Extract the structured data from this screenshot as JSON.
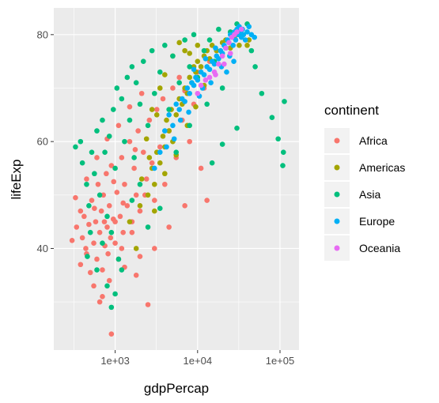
{
  "chart_data": {
    "type": "scatter",
    "title": "",
    "xlabel": "gdpPercap",
    "ylabel": "lifeExp",
    "x_scale": "log10",
    "xlim": [
      180,
      170000
    ],
    "ylim": [
      21,
      85
    ],
    "x_ticks": [
      1000,
      10000,
      100000
    ],
    "x_tick_labels": [
      "1e+03",
      "1e+04",
      "1e+05"
    ],
    "y_ticks": [
      40,
      60,
      80
    ],
    "y_tick_labels": [
      "40",
      "60",
      "80"
    ],
    "grid": true,
    "legend": {
      "title": "continent",
      "position": "right"
    },
    "series": [
      {
        "name": "Africa",
        "color": "#F8766D",
        "points": [
          [
            300,
            41.5
          ],
          [
            340,
            44
          ],
          [
            380,
            37
          ],
          [
            400,
            42
          ],
          [
            420,
            46
          ],
          [
            450,
            39
          ],
          [
            480,
            44.5
          ],
          [
            500,
            35.5
          ],
          [
            520,
            49
          ],
          [
            550,
            41
          ],
          [
            580,
            45
          ],
          [
            600,
            38
          ],
          [
            620,
            52
          ],
          [
            650,
            43
          ],
          [
            680,
            47
          ],
          [
            700,
            36
          ],
          [
            720,
            50
          ],
          [
            750,
            40.5
          ],
          [
            780,
            54
          ],
          [
            800,
            44
          ],
          [
            820,
            39
          ],
          [
            850,
            48
          ],
          [
            880,
            42
          ],
          [
            900,
            55.5
          ],
          [
            950,
            45.5
          ],
          [
            1000,
            41
          ],
          [
            1050,
            50.5
          ],
          [
            1100,
            38
          ],
          [
            1150,
            46
          ],
          [
            1200,
            57
          ],
          [
            1250,
            43
          ],
          [
            1300,
            52
          ],
          [
            1400,
            48
          ],
          [
            1500,
            60
          ],
          [
            1600,
            45
          ],
          [
            1700,
            55
          ],
          [
            1800,
            50
          ],
          [
            1900,
            62
          ],
          [
            2000,
            47
          ],
          [
            2200,
            58
          ],
          [
            2400,
            53
          ],
          [
            2600,
            64
          ],
          [
            2800,
            56
          ],
          [
            3000,
            49
          ],
          [
            3200,
            66
          ],
          [
            3500,
            59
          ],
          [
            3800,
            68
          ],
          [
            4000,
            52
          ],
          [
            4500,
            62
          ],
          [
            5000,
            70
          ],
          [
            5500,
            57
          ],
          [
            6000,
            72
          ],
          [
            6500,
            64
          ],
          [
            7000,
            69.5
          ],
          [
            8000,
            60
          ],
          [
            9000,
            67
          ],
          [
            10000,
            73
          ],
          [
            11000,
            55
          ],
          [
            12000,
            70
          ],
          [
            13000,
            49
          ],
          [
            14000,
            75
          ],
          [
            900,
            24
          ],
          [
            700,
            31
          ],
          [
            2500,
            29.5
          ],
          [
            1800,
            35
          ],
          [
            550,
            33
          ],
          [
            1300,
            36.5
          ],
          [
            3000,
            40
          ],
          [
            4500,
            44
          ],
          [
            7000,
            48
          ],
          [
            380,
            47
          ],
          [
            450,
            53
          ],
          [
            600,
            57
          ],
          [
            800,
            60.5
          ],
          [
            1100,
            63
          ],
          [
            1500,
            66.5
          ],
          [
            2100,
            69
          ],
          [
            650,
            30
          ],
          [
            850,
            34
          ],
          [
            1000,
            45
          ],
          [
            1200,
            40
          ],
          [
            1600,
            43
          ],
          [
            2000,
            38.5
          ],
          [
            330,
            49.5
          ],
          [
            440,
            40
          ],
          [
            560,
            47.5
          ],
          [
            740,
            45
          ],
          [
            960,
            52.5
          ],
          [
            1250,
            48.5
          ],
          [
            1750,
            58.5
          ],
          [
            2300,
            50
          ]
        ]
      },
      {
        "name": "Americas",
        "color": "#A3A500",
        "points": [
          [
            1500,
            45
          ],
          [
            1800,
            40
          ],
          [
            2000,
            48
          ],
          [
            2500,
            50
          ],
          [
            2800,
            55
          ],
          [
            3000,
            52
          ],
          [
            3200,
            58
          ],
          [
            3500,
            56
          ],
          [
            3800,
            61
          ],
          [
            4000,
            59
          ],
          [
            4200,
            64
          ],
          [
            4500,
            62
          ],
          [
            4800,
            66
          ],
          [
            5000,
            60
          ],
          [
            5500,
            65
          ],
          [
            6000,
            68
          ],
          [
            6500,
            67
          ],
          [
            7000,
            70
          ],
          [
            7500,
            69
          ],
          [
            8000,
            72
          ],
          [
            8500,
            71
          ],
          [
            9000,
            74
          ],
          [
            9500,
            73
          ],
          [
            10000,
            75
          ],
          [
            11000,
            74
          ],
          [
            12000,
            76
          ],
          [
            13000,
            77
          ],
          [
            14000,
            75.5
          ],
          [
            15000,
            78
          ],
          [
            17000,
            77
          ],
          [
            20000,
            78.5
          ],
          [
            22000,
            79
          ],
          [
            25000,
            77.5
          ],
          [
            28000,
            79.5
          ],
          [
            32000,
            78
          ],
          [
            36000,
            80
          ],
          [
            40000,
            78
          ],
          [
            42000,
            79
          ],
          [
            6000,
            78.5
          ],
          [
            7000,
            77
          ],
          [
            5000,
            76
          ],
          [
            4000,
            72.5
          ],
          [
            3500,
            70
          ],
          [
            2800,
            66
          ],
          [
            2400,
            60.5
          ],
          [
            2100,
            53
          ],
          [
            3000,
            47
          ],
          [
            4000,
            54
          ],
          [
            5500,
            57.5
          ],
          [
            7500,
            63
          ],
          [
            9500,
            66.5
          ],
          [
            12000,
            70.5
          ],
          [
            8000,
            76.5
          ],
          [
            10000,
            78
          ],
          [
            3200,
            65
          ],
          [
            2600,
            57
          ]
        ]
      },
      {
        "name": "Asia",
        "color": "#00BF7D",
        "points": [
          [
            330,
            59
          ],
          [
            380,
            60
          ],
          [
            400,
            56
          ],
          [
            450,
            52
          ],
          [
            480,
            48
          ],
          [
            520,
            58
          ],
          [
            560,
            54
          ],
          [
            600,
            62
          ],
          [
            650,
            50
          ],
          [
            700,
            64
          ],
          [
            750,
            58
          ],
          [
            800,
            46
          ],
          [
            850,
            61
          ],
          [
            900,
            43
          ],
          [
            950,
            66
          ],
          [
            1000,
            55
          ],
          [
            1050,
            70
          ],
          [
            1100,
            38
          ],
          [
            1200,
            68
          ],
          [
            1300,
            60
          ],
          [
            1400,
            72
          ],
          [
            1500,
            64
          ],
          [
            1600,
            74
          ],
          [
            1700,
            57
          ],
          [
            1800,
            71
          ],
          [
            2000,
            67
          ],
          [
            2200,
            75
          ],
          [
            2500,
            63
          ],
          [
            2800,
            77
          ],
          [
            3000,
            69
          ],
          [
            3500,
            73
          ],
          [
            4000,
            78
          ],
          [
            4500,
            66
          ],
          [
            5000,
            76
          ],
          [
            6000,
            71
          ],
          [
            7000,
            79
          ],
          [
            8000,
            74
          ],
          [
            9000,
            80
          ],
          [
            10000,
            72
          ],
          [
            12000,
            77
          ],
          [
            14000,
            79
          ],
          [
            16000,
            75
          ],
          [
            18000,
            81
          ],
          [
            20000,
            70
          ],
          [
            22000,
            77.5
          ],
          [
            25000,
            80.5
          ],
          [
            30000,
            82
          ],
          [
            35000,
            80
          ],
          [
            40000,
            82
          ],
          [
            30000,
            62.5
          ],
          [
            20000,
            59.5
          ],
          [
            15000,
            56
          ],
          [
            13000,
            67
          ],
          [
            50000,
            74
          ],
          [
            60000,
            69
          ],
          [
            80000,
            64.5
          ],
          [
            95000,
            60.5
          ],
          [
            110000,
            58
          ],
          [
            108000,
            55.5
          ],
          [
            113000,
            67.5
          ],
          [
            45000,
            77
          ],
          [
            700,
            41
          ],
          [
            600,
            36
          ],
          [
            800,
            33
          ],
          [
            900,
            29
          ],
          [
            1000,
            31.5
          ],
          [
            1200,
            36
          ],
          [
            500,
            43
          ],
          [
            460,
            38.5
          ],
          [
            2000,
            52
          ],
          [
            2500,
            44
          ],
          [
            1600,
            49
          ],
          [
            3500,
            47.5
          ],
          [
            5500,
            58
          ],
          [
            8000,
            63
          ]
        ]
      },
      {
        "name": "Europe",
        "color": "#00B0F6",
        "points": [
          [
            3000,
            55
          ],
          [
            3500,
            58
          ],
          [
            4000,
            62
          ],
          [
            4200,
            59
          ],
          [
            4500,
            65
          ],
          [
            5000,
            63
          ],
          [
            5500,
            67
          ],
          [
            6000,
            66
          ],
          [
            6500,
            68
          ],
          [
            7000,
            67.5
          ],
          [
            7500,
            70
          ],
          [
            8000,
            69
          ],
          [
            8500,
            71
          ],
          [
            9000,
            70.5
          ],
          [
            9500,
            72
          ],
          [
            10000,
            71.5
          ],
          [
            11000,
            73
          ],
          [
            12000,
            72.5
          ],
          [
            13000,
            74
          ],
          [
            14000,
            73.5
          ],
          [
            15000,
            75
          ],
          [
            16000,
            74.5
          ],
          [
            17000,
            76
          ],
          [
            18000,
            75.5
          ],
          [
            19000,
            77
          ],
          [
            20000,
            76.5
          ],
          [
            21000,
            78
          ],
          [
            22000,
            77.5
          ],
          [
            23000,
            79
          ],
          [
            24000,
            78.5
          ],
          [
            25000,
            80
          ],
          [
            26000,
            79.5
          ],
          [
            27000,
            78
          ],
          [
            28000,
            80.5
          ],
          [
            29000,
            79
          ],
          [
            30000,
            81
          ],
          [
            31000,
            80
          ],
          [
            32000,
            81.5
          ],
          [
            33000,
            80.5
          ],
          [
            34000,
            79.5
          ],
          [
            35000,
            81
          ],
          [
            36000,
            80
          ],
          [
            38000,
            79
          ],
          [
            40000,
            80.5
          ],
          [
            42000,
            81.5
          ],
          [
            45000,
            80
          ],
          [
            49000,
            79.5
          ],
          [
            11500,
            70
          ],
          [
            9000,
            73.5
          ],
          [
            14500,
            71
          ],
          [
            19500,
            74
          ],
          [
            24500,
            76
          ],
          [
            12500,
            75.5
          ],
          [
            16500,
            77.5
          ],
          [
            22500,
            73
          ],
          [
            27500,
            75
          ],
          [
            6200,
            64
          ],
          [
            5200,
            60.5
          ],
          [
            7800,
            65.5
          ],
          [
            10500,
            68.5
          ]
        ]
      },
      {
        "name": "Oceania",
        "color": "#E76BF3",
        "points": [
          [
            10000,
            69
          ],
          [
            11000,
            70.5
          ],
          [
            12500,
            71.5
          ],
          [
            14000,
            72
          ],
          [
            16000,
            73
          ],
          [
            18000,
            74.5
          ],
          [
            20000,
            76
          ],
          [
            22000,
            77.5
          ],
          [
            24000,
            78.5
          ],
          [
            26000,
            79.5
          ],
          [
            28000,
            80
          ],
          [
            30000,
            80.5
          ],
          [
            34000,
            81
          ],
          [
            16500,
            72.5
          ],
          [
            21000,
            74.5
          ],
          [
            25000,
            76.5
          ]
        ]
      }
    ]
  }
}
